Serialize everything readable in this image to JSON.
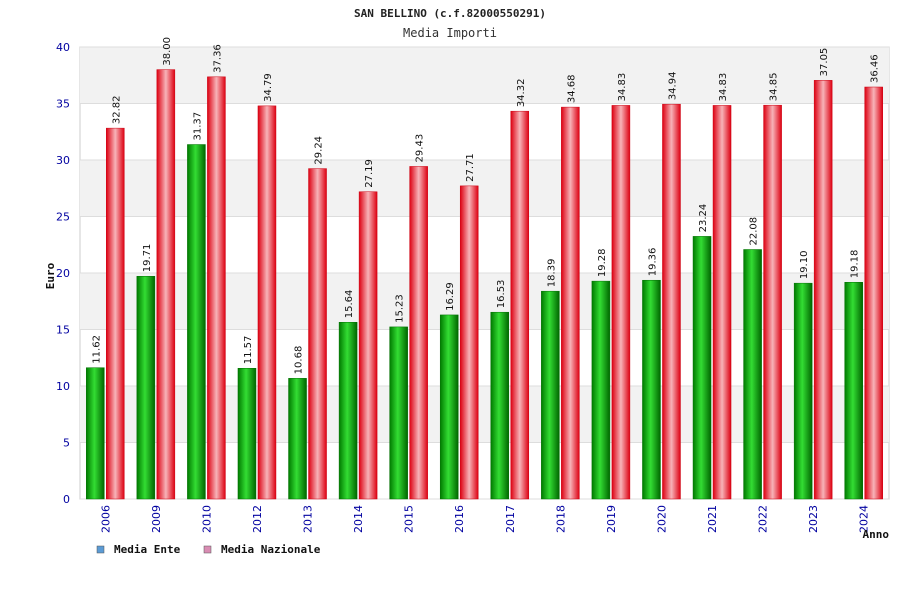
{
  "chart_data": {
    "type": "bar",
    "title": "SAN BELLINO (c.f.82000550291)",
    "subtitle": "Media Importi",
    "ylabel": "Euro",
    "xlabel": "Anno",
    "ylim": [
      0,
      40
    ],
    "yticks": [
      0,
      5,
      10,
      15,
      20,
      25,
      30,
      35,
      40
    ],
    "grid": true,
    "legend_position": "bottom-left",
    "categories": [
      "2006",
      "2009",
      "2010",
      "2012",
      "2013",
      "2014",
      "2015",
      "2016",
      "2017",
      "2018",
      "2019",
      "2020",
      "2021",
      "2022",
      "2023",
      "2024"
    ],
    "series": [
      {
        "name": "Media Ente",
        "color": "#00aa00",
        "legend_color": "#5b9bd5",
        "values": [
          11.62,
          19.71,
          31.37,
          11.57,
          10.68,
          15.64,
          15.23,
          16.29,
          16.53,
          18.39,
          19.28,
          19.36,
          23.24,
          22.08,
          19.1,
          19.18
        ]
      },
      {
        "name": "Media Nazionale",
        "color": "#ee1c2b",
        "legend_color": "#d98cb3",
        "values": [
          32.82,
          38.0,
          37.36,
          34.79,
          29.24,
          27.19,
          29.43,
          27.71,
          34.32,
          34.68,
          34.83,
          34.94,
          34.83,
          34.85,
          37.05,
          36.46
        ]
      }
    ]
  }
}
